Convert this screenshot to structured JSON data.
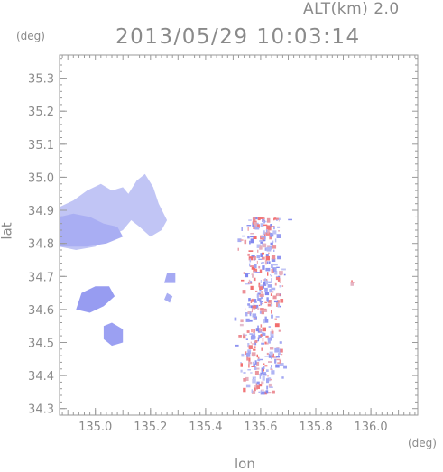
{
  "header": {
    "altitude_label": "ALT(km)  2.0",
    "timestamp": "2013/05/29  10:03:14"
  },
  "axes": {
    "y_unit": "(deg)",
    "x_unit": "(deg)",
    "x_title": "lon",
    "y_title": "lat"
  },
  "chart_data": {
    "type": "heatmap",
    "title": "2013/05/29  10:03:14",
    "xlabel": "lon",
    "ylabel": "lat",
    "xlim": [
      134.87,
      136.17
    ],
    "ylim": [
      34.28,
      35.37
    ],
    "x_ticks": [
      "135.0",
      "135.2",
      "135.4",
      "135.6",
      "135.8",
      "136.0"
    ],
    "y_ticks": [
      "34.3",
      "34.4",
      "34.5",
      "34.6",
      "34.7",
      "34.8",
      "34.9",
      "35.0",
      "35.1",
      "35.2",
      "35.3"
    ],
    "grid": false,
    "colors": {
      "negative": "#7f85ef",
      "positive": "#f36b6b",
      "weak": "#dde0f8"
    },
    "regions": [
      {
        "name": "northwest-echo",
        "sign": "negative",
        "intensity": 0.3,
        "points": [
          [
            134.87,
            34.79
          ],
          [
            134.87,
            34.91
          ],
          [
            134.92,
            34.93
          ],
          [
            134.97,
            34.96
          ],
          [
            135.02,
            34.98
          ],
          [
            135.06,
            34.96
          ],
          [
            135.1,
            34.97
          ],
          [
            135.12,
            34.95
          ],
          [
            135.15,
            34.99
          ],
          [
            135.18,
            35.01
          ],
          [
            135.21,
            34.97
          ],
          [
            135.23,
            34.92
          ],
          [
            135.26,
            34.87
          ],
          [
            135.24,
            34.84
          ],
          [
            135.2,
            34.82
          ],
          [
            135.16,
            34.85
          ],
          [
            135.13,
            34.87
          ],
          [
            135.1,
            34.84
          ],
          [
            135.05,
            34.82
          ],
          [
            135.0,
            34.79
          ],
          [
            134.93,
            34.78
          ]
        ]
      },
      {
        "name": "northwest-echo-core",
        "sign": "negative",
        "intensity": 0.55,
        "points": [
          [
            134.87,
            34.79
          ],
          [
            134.87,
            34.88
          ],
          [
            134.92,
            34.89
          ],
          [
            134.98,
            34.88
          ],
          [
            135.03,
            34.86
          ],
          [
            135.08,
            34.85
          ],
          [
            135.1,
            34.82
          ],
          [
            135.04,
            34.8
          ],
          [
            134.97,
            34.79
          ]
        ]
      },
      {
        "name": "west-cell",
        "sign": "negative",
        "intensity": 0.75,
        "points": [
          [
            134.93,
            34.6
          ],
          [
            134.95,
            34.65
          ],
          [
            135.0,
            34.67
          ],
          [
            135.05,
            34.67
          ],
          [
            135.07,
            34.64
          ],
          [
            135.03,
            34.61
          ],
          [
            134.98,
            34.59
          ]
        ]
      },
      {
        "name": "southwest-cell",
        "sign": "negative",
        "intensity": 0.7,
        "points": [
          [
            135.03,
            34.51
          ],
          [
            135.03,
            34.55
          ],
          [
            135.06,
            34.56
          ],
          [
            135.1,
            34.54
          ],
          [
            135.1,
            34.5
          ],
          [
            135.06,
            34.49
          ]
        ]
      },
      {
        "name": "central-cell",
        "sign": "negative",
        "intensity": 0.6,
        "points": [
          [
            135.25,
            34.68
          ],
          [
            135.26,
            34.71
          ],
          [
            135.29,
            34.71
          ],
          [
            135.29,
            34.68
          ]
        ]
      },
      {
        "name": "central-small-cell",
        "sign": "negative",
        "intensity": 0.55,
        "points": [
          [
            135.25,
            34.63
          ],
          [
            135.26,
            34.65
          ],
          [
            135.28,
            34.64
          ],
          [
            135.27,
            34.62
          ]
        ]
      }
    ],
    "speckle_zones": [
      {
        "name": "eastern-cluster",
        "lon": [
          135.48,
          135.72
        ],
        "lat": [
          34.35,
          34.88
        ]
      },
      {
        "name": "isolated-pixel",
        "lon": [
          135.92,
          135.94
        ],
        "lat": [
          34.68,
          34.69
        ]
      }
    ]
  }
}
